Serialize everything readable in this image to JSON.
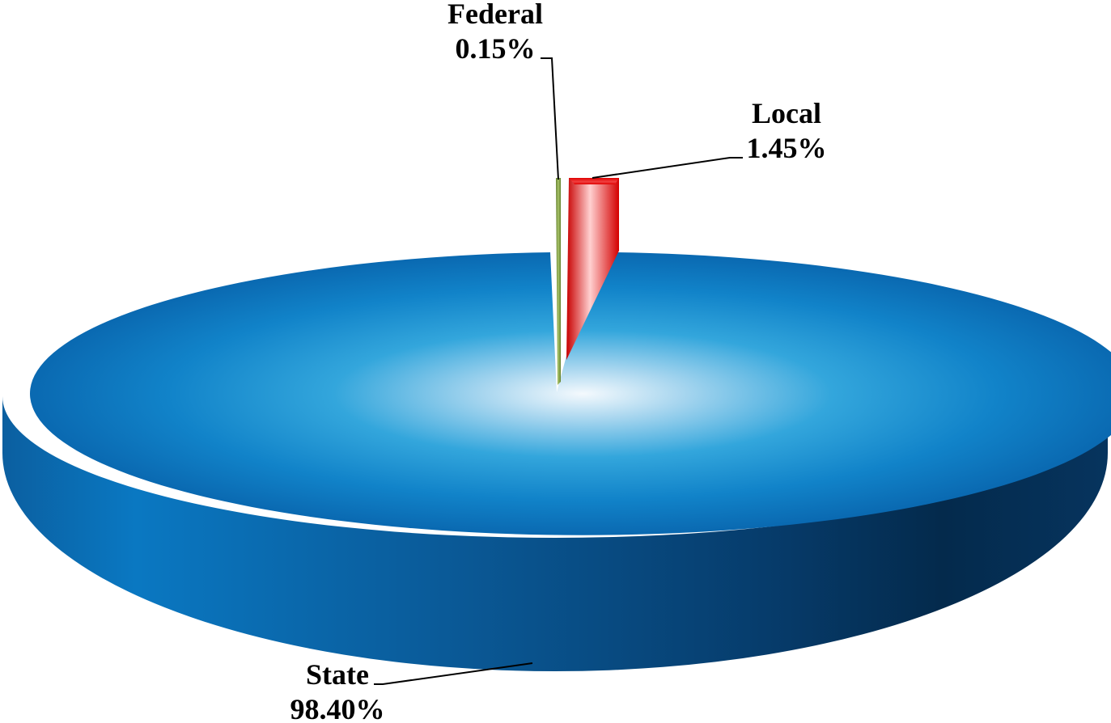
{
  "chart_data": {
    "type": "pie",
    "style": "3d-exploded",
    "slices": [
      {
        "label": "State",
        "value": 98.4,
        "value_label": "98.40%",
        "color": "#0a6db5",
        "exploded": false
      },
      {
        "label": "Federal",
        "value": 0.15,
        "value_label": "0.15%",
        "color": "#7a9a3c",
        "exploded": true
      },
      {
        "label": "Local",
        "value": 1.45,
        "value_label": "1.45%",
        "color": "#e00000",
        "exploded": true
      }
    ],
    "title": "",
    "legend": "none",
    "data_labels": "outside-with-leader-lines"
  }
}
